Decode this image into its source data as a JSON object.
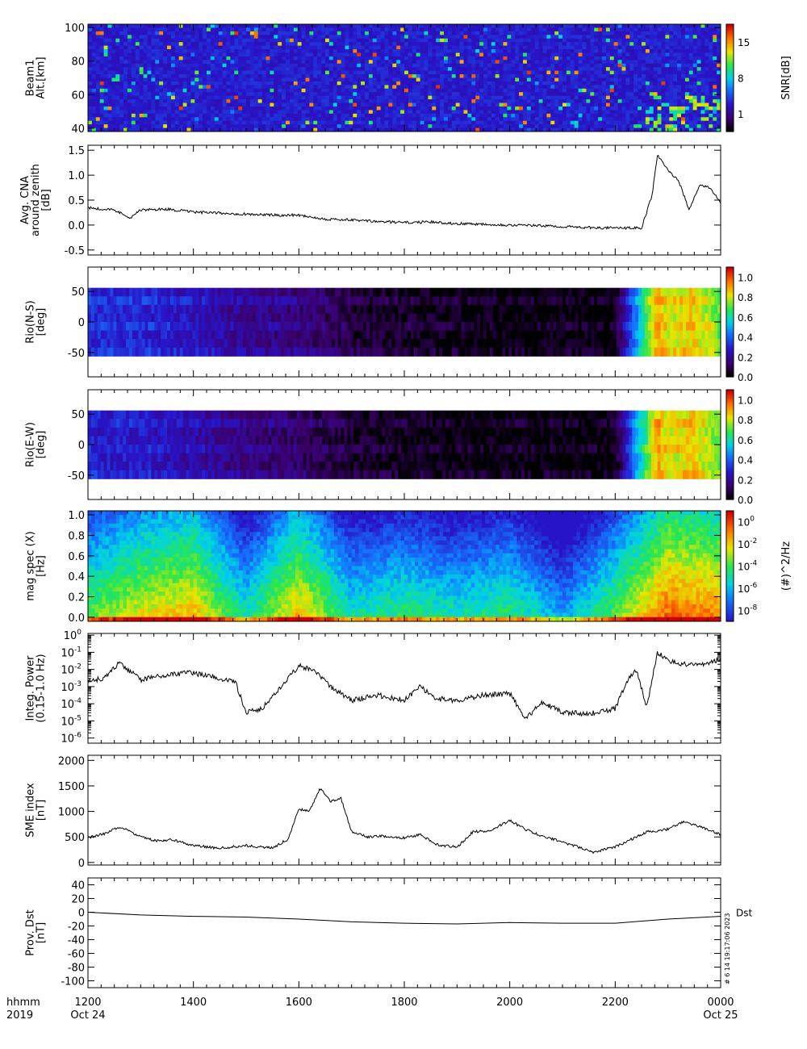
{
  "footer": {
    "left_line1": "hhmm",
    "left_line2": "2019",
    "ticks": [
      {
        "hhmm": "1200",
        "date": "Oct 24"
      },
      {
        "hhmm": "1400",
        "date": ""
      },
      {
        "hhmm": "1600",
        "date": ""
      },
      {
        "hhmm": "1800",
        "date": ""
      },
      {
        "hhmm": "2000",
        "date": ""
      },
      {
        "hhmm": "2200",
        "date": ""
      },
      {
        "hhmm": "0000",
        "date": "Oct 25"
      }
    ],
    "stamp": "#  6 14 19:17:06 2023"
  },
  "chart_data": [
    {
      "type": "heatmap",
      "ylabel": [
        "Beam1",
        "Alt.[km]"
      ],
      "yticks": [
        40,
        60,
        80,
        100
      ],
      "ylim": [
        38,
        102
      ],
      "colorbar": {
        "label": "SNR[dB]",
        "ticks": [
          "1",
          "8",
          "15"
        ],
        "range": [
          1,
          15
        ]
      },
      "description_values": {
        "background_snr_db": 3,
        "sporadic_strong_returns": true
      }
    },
    {
      "type": "line",
      "ylabel": [
        "Avg. CNA",
        "around zenith",
        "[dB]"
      ],
      "yticks": [
        "-0.5",
        "0.0",
        "0.5",
        "1.0",
        "1.5"
      ],
      "ylim": [
        -0.6,
        1.6
      ],
      "x_hours": [
        12,
        12.5,
        12.8,
        13.0,
        13.5,
        14.0,
        14.5,
        15.0,
        15.5,
        16.0,
        16.5,
        17.0,
        17.5,
        18.0,
        18.5,
        19.0,
        19.5,
        20.0,
        20.5,
        21.0,
        21.5,
        22.0,
        22.5,
        22.7,
        22.8,
        23.0,
        23.2,
        23.4,
        23.6,
        23.8,
        24.0
      ],
      "y": [
        0.35,
        0.3,
        0.15,
        0.3,
        0.32,
        0.26,
        0.24,
        0.22,
        0.2,
        0.2,
        0.12,
        0.1,
        0.07,
        0.05,
        0.06,
        0.03,
        0.02,
        0.0,
        -0.01,
        -0.03,
        -0.05,
        -0.06,
        -0.06,
        0.6,
        1.4,
        1.1,
        0.9,
        0.3,
        0.8,
        0.75,
        0.45
      ]
    },
    {
      "type": "heatmap",
      "ylabel": [
        "Rio(N-S)",
        "[deg]"
      ],
      "yticks": [
        "-50",
        "0",
        "50"
      ],
      "ylim": [
        -90,
        90
      ],
      "colorbar": {
        "label": "",
        "ticks": [
          "0.0",
          "0.2",
          "0.4",
          "0.6",
          "0.8",
          "1.0"
        ],
        "range": [
          0,
          1.1
        ]
      },
      "x_hours": [
        12,
        13,
        14,
        15,
        16,
        17,
        18,
        19,
        20,
        21,
        22,
        22.8,
        23,
        23.5,
        24
      ],
      "level": [
        0.3,
        0.3,
        0.25,
        0.18,
        0.15,
        0.06,
        0.04,
        0.02,
        0.01,
        0.01,
        0.01,
        0.9,
        0.8,
        0.85,
        0.7
      ]
    },
    {
      "type": "heatmap",
      "ylabel": [
        "Rio(E-W)",
        "[deg]"
      ],
      "yticks": [
        "-50",
        "0",
        "50"
      ],
      "ylim": [
        -90,
        90
      ],
      "colorbar": {
        "label": "",
        "ticks": [
          "0.0",
          "0.2",
          "0.4",
          "0.6",
          "0.8",
          "1.0"
        ],
        "range": [
          0,
          1.1
        ]
      },
      "x_hours": [
        12,
        13,
        14,
        15,
        16,
        17,
        18,
        19,
        20,
        21,
        22,
        22.8,
        23,
        23.5,
        24
      ],
      "level": [
        0.28,
        0.27,
        0.22,
        0.15,
        0.12,
        0.05,
        0.03,
        0.01,
        0.01,
        0.01,
        0.01,
        0.9,
        0.8,
        0.85,
        0.7
      ]
    },
    {
      "type": "heatmap",
      "ylabel": [
        "mag spec (X)",
        "[Hz]"
      ],
      "yticks": [
        "0.0",
        "0.2",
        "0.4",
        "0.6",
        "0.8",
        "1.0"
      ],
      "ylim": [
        -0.04,
        1.04
      ],
      "colorbar": {
        "label": "(#)^2/Hz",
        "ticks": [
          "10^-8",
          "10^-6",
          "10^-4",
          "10^-2",
          "10^0"
        ]
      },
      "x_hours": [
        12,
        13,
        14,
        15,
        16,
        17,
        18,
        19,
        20,
        21,
        22,
        23,
        24
      ],
      "intensity": [
        0.55,
        0.65,
        0.7,
        0.45,
        0.7,
        0.45,
        0.5,
        0.45,
        0.5,
        0.35,
        0.55,
        0.8,
        0.75
      ]
    },
    {
      "type": "line",
      "ylabel": [
        "Integ. Power",
        "(0.15-1.0 Hz)"
      ],
      "yscale": "log",
      "yticks": [
        "10^-6",
        "10^-5",
        "10^-4",
        "10^-3",
        "10^-2",
        "10^-1",
        "10^0"
      ],
      "ylim": [
        -6.3,
        0.1
      ],
      "x_hours": [
        12,
        12.3,
        12.6,
        13.0,
        13.5,
        14.0,
        14.5,
        14.8,
        15.0,
        15.3,
        15.6,
        16.0,
        16.3,
        16.6,
        17.0,
        17.5,
        18.0,
        18.3,
        18.6,
        19.0,
        19.5,
        20.0,
        20.3,
        20.6,
        21.0,
        21.5,
        22.0,
        22.2,
        22.4,
        22.6,
        22.8,
        23.0,
        23.5,
        24.0
      ],
      "log10_y": [
        -2.7,
        -2.5,
        -1.6,
        -2.6,
        -2.3,
        -2.2,
        -2.5,
        -2.8,
        -4.5,
        -4.3,
        -3.2,
        -1.8,
        -2.1,
        -3.0,
        -3.8,
        -3.5,
        -3.8,
        -3.0,
        -3.7,
        -3.8,
        -3.5,
        -3.4,
        -4.9,
        -3.9,
        -4.5,
        -4.6,
        -4.3,
        -2.8,
        -2.0,
        -4.2,
        -1.0,
        -1.5,
        -1.8,
        -1.4
      ]
    },
    {
      "type": "line",
      "ylabel": [
        "SME index",
        "[nT]"
      ],
      "yticks": [
        "0",
        "500",
        "1000",
        "1500",
        "2000"
      ],
      "ylim": [
        -50,
        2100
      ],
      "x_hours": [
        12,
        12.3,
        12.6,
        13.0,
        13.3,
        13.6,
        14.0,
        14.5,
        15.0,
        15.5,
        15.8,
        16.0,
        16.2,
        16.4,
        16.6,
        16.8,
        17.0,
        17.3,
        17.6,
        18.0,
        18.3,
        18.6,
        19.0,
        19.3,
        19.6,
        20.0,
        20.3,
        20.6,
        21.0,
        21.3,
        21.6,
        22.0,
        22.3,
        22.6,
        23.0,
        23.3,
        23.6,
        24.0
      ],
      "y": [
        480,
        560,
        700,
        500,
        420,
        450,
        330,
        280,
        330,
        280,
        460,
        1050,
        1000,
        1450,
        1200,
        1250,
        600,
        500,
        520,
        480,
        550,
        350,
        300,
        600,
        620,
        820,
        650,
        520,
        400,
        300,
        200,
        310,
        450,
        600,
        650,
        800,
        700,
        550
      ]
    },
    {
      "type": "line",
      "ylabel": [
        "Prov. Dst",
        "[nT]"
      ],
      "yticks": [
        "-100",
        "-80",
        "-60",
        "-40",
        "-20",
        "0",
        "20",
        "40"
      ],
      "ylim": [
        -110,
        50
      ],
      "legend": "Dst",
      "x_hours": [
        12,
        13,
        14,
        15,
        16,
        17,
        18,
        19,
        20,
        21,
        22,
        23,
        24
      ],
      "y": [
        0,
        -4,
        -6,
        -7,
        -10,
        -14,
        -16,
        -17,
        -15,
        -16,
        -16,
        -10,
        -6
      ]
    }
  ]
}
